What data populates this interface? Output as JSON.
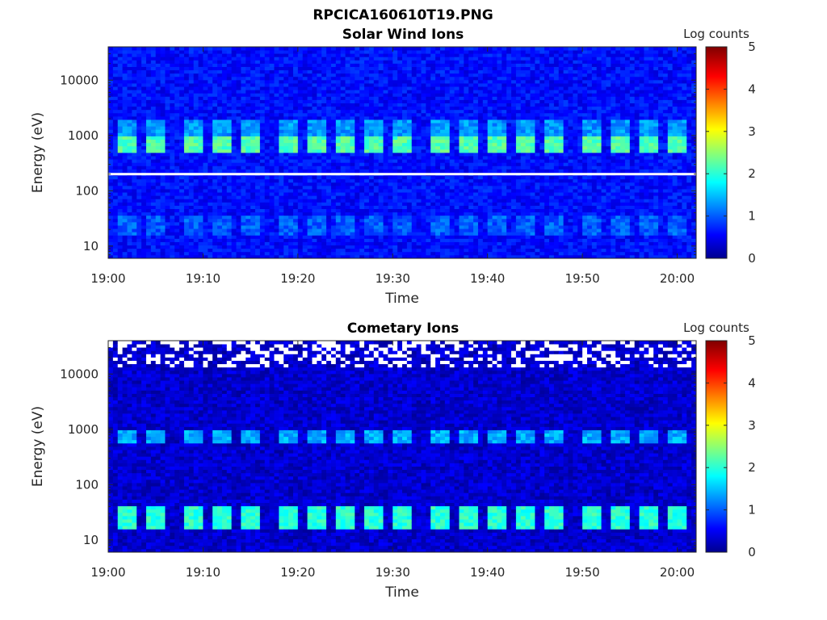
{
  "figure": {
    "title": "RPCICA160610T19.PNG"
  },
  "colorscale": {
    "name": "jet",
    "stops": [
      "#00008f",
      "#0000ff",
      "#0080ff",
      "#00ffff",
      "#80ff80",
      "#ffff00",
      "#ff8000",
      "#ff0000",
      "#800000"
    ]
  },
  "chart_data": [
    {
      "type": "heatmap",
      "title": "Solar Wind Ions",
      "xlabel": "Time",
      "ylabel": "Energy (eV)",
      "xlim": [
        "19:00",
        "20:02"
      ],
      "xticks": [
        "19:00",
        "19:10",
        "19:20",
        "19:30",
        "19:40",
        "19:50",
        "20:00"
      ],
      "yscale": "log",
      "ylim": [
        6,
        40000
      ],
      "yticks": [
        10,
        100,
        1000,
        10000
      ],
      "ytick_labels": [
        "10",
        "100",
        "1000",
        "10000"
      ],
      "colorbar": {
        "label": "Log counts",
        "range": [
          0,
          5
        ],
        "ticks": [
          "0",
          "1",
          "2",
          "3",
          "4",
          "5"
        ]
      },
      "pulse_times": [
        "19:02",
        "19:05",
        "19:09",
        "19:12",
        "19:15",
        "19:19",
        "19:22",
        "19:25",
        "19:28",
        "19:31",
        "19:35",
        "19:38",
        "19:41",
        "19:44",
        "19:47",
        "19:51",
        "19:54",
        "19:57",
        "20:00"
      ],
      "bands": [
        {
          "energy_range": [
            500,
            1000
          ],
          "log_counts": 2.2
        },
        {
          "energy_range": [
            1000,
            2000
          ],
          "log_counts": 1.3
        },
        {
          "energy_range": [
            15,
            35
          ],
          "log_counts": 1.0
        }
      ],
      "background_log_counts": 0.6,
      "white_line_energy": 200
    },
    {
      "type": "heatmap",
      "title": "Cometary Ions",
      "xlabel": "Time",
      "ylabel": "Energy (eV)",
      "xlim": [
        "19:00",
        "20:02"
      ],
      "xticks": [
        "19:00",
        "19:10",
        "19:20",
        "19:30",
        "19:40",
        "19:50",
        "20:00"
      ],
      "yscale": "log",
      "ylim": [
        6,
        40000
      ],
      "yticks": [
        10,
        100,
        1000,
        10000
      ],
      "ytick_labels": [
        "10",
        "100",
        "1000",
        "10000"
      ],
      "colorbar": {
        "label": "Log counts",
        "range": [
          0,
          5
        ],
        "ticks": [
          "0",
          "1",
          "2",
          "3",
          "4",
          "5"
        ]
      },
      "pulse_times": [
        "19:02",
        "19:05",
        "19:09",
        "19:12",
        "19:15",
        "19:19",
        "19:22",
        "19:25",
        "19:28",
        "19:31",
        "19:35",
        "19:38",
        "19:41",
        "19:44",
        "19:47",
        "19:51",
        "19:54",
        "19:57",
        "20:00"
      ],
      "bands": [
        {
          "energy_range": [
            550,
            950
          ],
          "log_counts": 1.4
        },
        {
          "energy_range": [
            15,
            40
          ],
          "log_counts": 2.0
        }
      ],
      "background_log_counts": 0.3,
      "white_region_energy_min": 14000
    }
  ]
}
